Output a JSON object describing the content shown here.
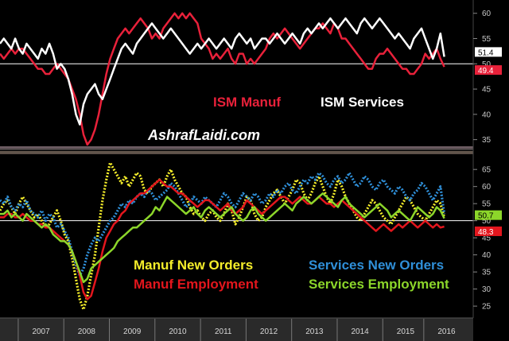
{
  "watermark": "AshrafLaidi.com",
  "colors": {
    "background": "#000000",
    "ism_manuf": "#e8213a",
    "ism_services": "#ffffff",
    "manuf_new_orders": "#f5ee2a",
    "services_new_orders": "#2f8fd8",
    "manuf_employment": "#e3161d",
    "services_employment": "#8cd62a",
    "axis_text": "#c8c8c8",
    "last_value_box": "#e01e1e"
  },
  "chart_data": [
    {
      "type": "line",
      "title": "",
      "ylim": [
        34,
        62
      ],
      "yticks": [
        35,
        40,
        45,
        50,
        55,
        60
      ],
      "reference_line": 50,
      "x_start": 2006.6,
      "x_step": 0.08333,
      "series": [
        {
          "name": "ISM Manuf",
          "key": "ism_manuf",
          "style": "solid",
          "last_label": "49.4",
          "values": [
            52,
            51,
            52,
            53,
            52,
            53,
            53,
            52,
            51,
            50,
            49,
            49,
            48,
            48,
            49,
            50,
            49,
            48,
            47,
            45,
            43,
            40,
            36,
            34,
            35,
            37,
            40,
            44,
            48,
            51,
            53,
            55,
            56,
            57,
            56,
            57,
            58,
            59,
            58,
            57,
            55,
            56,
            55,
            57,
            58,
            59,
            60,
            59,
            60,
            59,
            60,
            59,
            58,
            55,
            54,
            53,
            51,
            52,
            51,
            52,
            53,
            51,
            50,
            52,
            52,
            50,
            51,
            50,
            51,
            52,
            53,
            55,
            56,
            55,
            56,
            57,
            56,
            55,
            54,
            53,
            54,
            55,
            56,
            57,
            57,
            58,
            57,
            56,
            58,
            57,
            55,
            55,
            54,
            53,
            52,
            51,
            50,
            49,
            49,
            51,
            52,
            52,
            53,
            52,
            51,
            50,
            49,
            49,
            48,
            48,
            49,
            50,
            52,
            51,
            52,
            53,
            51,
            49.4
          ]
        },
        {
          "name": "ISM Services",
          "key": "ism_services",
          "style": "solid",
          "last_label": "51.4",
          "values": [
            54,
            55,
            54,
            53,
            55,
            53,
            52,
            54,
            53,
            52,
            51,
            53,
            52,
            54,
            52,
            49,
            50,
            49,
            47,
            44,
            40,
            38,
            42,
            44,
            45,
            46,
            44,
            43,
            45,
            47,
            49,
            51,
            53,
            54,
            53,
            52,
            54,
            55,
            56,
            57,
            58,
            57,
            56,
            55,
            56,
            57,
            56,
            55,
            54,
            53,
            52,
            53,
            54,
            53,
            54,
            55,
            54,
            53,
            54,
            55,
            54,
            53,
            55,
            56,
            55,
            54,
            55,
            53,
            54,
            55,
            55,
            54,
            55,
            56,
            55,
            54,
            55,
            56,
            55,
            54,
            56,
            57,
            56,
            57,
            58,
            57,
            58,
            59,
            58,
            57,
            58,
            59,
            58,
            57,
            56,
            58,
            59,
            58,
            57,
            58,
            59,
            58,
            57,
            56,
            55,
            56,
            55,
            54,
            53,
            55,
            56,
            57,
            55,
            53,
            51,
            53,
            56,
            51.4
          ]
        }
      ]
    },
    {
      "type": "line",
      "title": "",
      "ylim": [
        22,
        69
      ],
      "yticks": [
        25,
        30,
        35,
        40,
        45,
        50,
        55,
        60,
        65
      ],
      "reference_line": 50,
      "x_start": 2006.6,
      "x_step": 0.08333,
      "x_tick_labels": [
        "2007",
        "2008",
        "2009",
        "2010",
        "2011",
        "2012",
        "2013",
        "2014",
        "2015",
        "2016"
      ],
      "x_tick_positions": [
        2007.5,
        2008.5,
        2009.5,
        2010.5,
        2011.5,
        2012.5,
        2013.5,
        2014.5,
        2015.5,
        2016.4
      ],
      "series": [
        {
          "name": "Manuf New Orders",
          "key": "manuf_new_orders",
          "style": "dotted",
          "last_label": "",
          "values": [
            53,
            55,
            56,
            54,
            52,
            55,
            57,
            55,
            53,
            51,
            52,
            50,
            48,
            49,
            51,
            53,
            50,
            46,
            44,
            39,
            33,
            27,
            24,
            28,
            34,
            40,
            48,
            56,
            62,
            67,
            65,
            63,
            61,
            63,
            60,
            62,
            64,
            63,
            59,
            58,
            60,
            61,
            62,
            60,
            63,
            65,
            62,
            60,
            58,
            57,
            54,
            52,
            53,
            51,
            50,
            52,
            53,
            51,
            50,
            52,
            55,
            53,
            49,
            51,
            54,
            57,
            56,
            52,
            50,
            51,
            54,
            56,
            58,
            59,
            57,
            55,
            57,
            59,
            62,
            61,
            58,
            56,
            58,
            61,
            63,
            60,
            57,
            55,
            58,
            62,
            60,
            57,
            55,
            53,
            51,
            50,
            52,
            54,
            56,
            55,
            53,
            51,
            50,
            49,
            51,
            53,
            55,
            57,
            56,
            54,
            52,
            51,
            50,
            52,
            54,
            56,
            55,
            51
          ]
        },
        {
          "name": "Services New Orders",
          "key": "services_new_orders",
          "style": "dotted",
          "last_label": "",
          "values": [
            56,
            55,
            57,
            54,
            53,
            55,
            54,
            56,
            53,
            52,
            51,
            53,
            50,
            52,
            51,
            48,
            49,
            47,
            45,
            41,
            37,
            34,
            36,
            40,
            43,
            45,
            44,
            46,
            48,
            50,
            51,
            53,
            55,
            54,
            56,
            55,
            57,
            58,
            57,
            59,
            58,
            56,
            57,
            58,
            59,
            61,
            60,
            58,
            56,
            54,
            55,
            57,
            56,
            55,
            57,
            56,
            55,
            54,
            56,
            58,
            57,
            55,
            54,
            56,
            58,
            57,
            56,
            58,
            57,
            55,
            56,
            58,
            57,
            59,
            58,
            60,
            61,
            59,
            58,
            60,
            62,
            61,
            63,
            62,
            64,
            63,
            61,
            60,
            62,
            63,
            61,
            62,
            64,
            62,
            60,
            61,
            63,
            62,
            60,
            59,
            61,
            62,
            60,
            59,
            58,
            60,
            59,
            57,
            56,
            58,
            59,
            61,
            60,
            58,
            56,
            58,
            60,
            52
          ]
        },
        {
          "name": "Manuf Employment",
          "key": "manuf_employment",
          "style": "solid",
          "last_label": "48.3",
          "values": [
            51,
            51,
            52,
            52,
            51,
            51,
            52,
            51,
            50,
            50,
            49,
            49,
            48,
            48,
            47,
            46,
            45,
            44,
            43,
            41,
            38,
            34,
            29,
            27,
            28,
            32,
            36,
            41,
            45,
            47,
            49,
            50,
            52,
            53,
            55,
            56,
            57,
            58,
            58,
            59,
            60,
            61,
            62,
            61,
            60,
            60,
            59,
            58,
            58,
            57,
            56,
            55,
            54,
            55,
            56,
            56,
            55,
            54,
            53,
            54,
            55,
            53,
            52,
            53,
            54,
            56,
            55,
            54,
            53,
            52,
            53,
            54,
            55,
            56,
            57,
            57,
            56,
            55,
            56,
            57,
            56,
            55,
            55,
            56,
            57,
            56,
            55,
            55,
            54,
            55,
            56,
            55,
            54,
            53,
            52,
            51,
            50,
            49,
            48,
            47,
            48,
            49,
            48,
            47,
            48,
            49,
            48,
            49,
            50,
            49,
            48,
            49,
            50,
            49,
            48,
            49,
            48,
            48.3
          ]
        },
        {
          "name": "Services Employment",
          "key": "services_employment",
          "style": "solid",
          "last_label": "50.7",
          "values": [
            52,
            52,
            53,
            51,
            52,
            51,
            50,
            52,
            51,
            50,
            49,
            48,
            49,
            48,
            46,
            45,
            44,
            44,
            43,
            41,
            38,
            35,
            32,
            33,
            36,
            37,
            38,
            39,
            40,
            41,
            42,
            44,
            45,
            46,
            47,
            48,
            48,
            49,
            50,
            51,
            52,
            54,
            53,
            55,
            57,
            56,
            55,
            54,
            53,
            52,
            53,
            54,
            52,
            51,
            53,
            54,
            53,
            52,
            51,
            52,
            53,
            54,
            52,
            51,
            50,
            51,
            53,
            54,
            52,
            51,
            50,
            51,
            52,
            53,
            54,
            55,
            54,
            53,
            55,
            56,
            57,
            56,
            55,
            56,
            57,
            58,
            57,
            56,
            55,
            54,
            56,
            57,
            55,
            54,
            53,
            52,
            51,
            52,
            53,
            54,
            55,
            54,
            53,
            51,
            52,
            53,
            52,
            51,
            50,
            52,
            54,
            53,
            52,
            51,
            52,
            54,
            53,
            50.7
          ]
        }
      ]
    }
  ]
}
